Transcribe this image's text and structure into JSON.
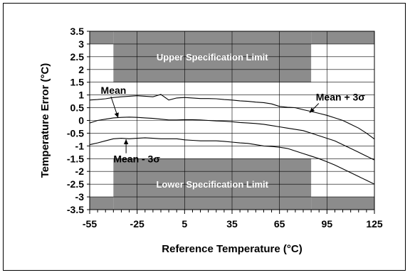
{
  "chart_data": {
    "type": "line",
    "xlabel": "Reference Temperature (°C)",
    "ylabel": "Temperature Error (°C)",
    "xlim": [
      -55,
      125
    ],
    "ylim": [
      -3.5,
      3.5
    ],
    "x_ticks": [
      -55,
      -25,
      5,
      35,
      65,
      95,
      125
    ],
    "y_ticks": [
      3.5,
      3,
      2.5,
      2,
      1.5,
      1,
      0.5,
      0,
      -0.5,
      -1,
      -1.5,
      -2,
      -2.5,
      -3,
      -3.5
    ],
    "grid": true,
    "spec_limits": {
      "upper": {
        "label": "Upper Specification Limit",
        "segments": [
          {
            "x": [
              -55,
              -40
            ],
            "y": [
              3,
              3.5
            ]
          },
          {
            "x": [
              -40,
              85
            ],
            "y": [
              1.5,
              3.5
            ]
          },
          {
            "x": [
              85,
              125
            ],
            "y": [
              3,
              3.5
            ]
          }
        ]
      },
      "lower": {
        "label": "Lower Specification Limit",
        "segments": [
          {
            "x": [
              -55,
              -40
            ],
            "y": [
              -3.5,
              -3
            ]
          },
          {
            "x": [
              -40,
              85
            ],
            "y": [
              -3.5,
              -1.5
            ]
          },
          {
            "x": [
              85,
              125
            ],
            "y": [
              -3.5,
              -3
            ]
          }
        ]
      }
    },
    "series": [
      {
        "name": "Mean + 3σ",
        "x": [
          -55,
          -50,
          -45,
          -40,
          -35,
          -30,
          -25,
          -20,
          -15,
          -10,
          -5,
          0,
          5,
          10,
          15,
          20,
          25,
          30,
          35,
          40,
          45,
          50,
          55,
          60,
          65,
          70,
          75,
          80,
          85,
          90,
          95,
          100,
          105,
          110,
          115,
          120,
          125
        ],
        "y": [
          0.8,
          0.82,
          0.85,
          0.9,
          0.93,
          0.95,
          0.97,
          0.95,
          0.93,
          1.02,
          0.8,
          0.88,
          0.9,
          0.88,
          0.86,
          0.86,
          0.85,
          0.82,
          0.8,
          0.77,
          0.75,
          0.72,
          0.7,
          0.65,
          0.55,
          0.52,
          0.5,
          0.42,
          0.35,
          0.28,
          0.2,
          0.1,
          0.0,
          -0.15,
          -0.3,
          -0.5,
          -0.73
        ]
      },
      {
        "name": "Mean",
        "x": [
          -55,
          -50,
          -45,
          -40,
          -35,
          -30,
          -25,
          -20,
          -15,
          -10,
          -5,
          0,
          5,
          10,
          15,
          20,
          25,
          30,
          35,
          40,
          45,
          50,
          55,
          60,
          65,
          70,
          75,
          80,
          85,
          90,
          95,
          100,
          105,
          110,
          115,
          120,
          125
        ],
        "y": [
          -0.1,
          0.0,
          0.05,
          0.1,
          0.12,
          0.13,
          0.12,
          0.1,
          0.08,
          0.05,
          0.02,
          0.02,
          0.03,
          0.03,
          0.02,
          0.0,
          -0.02,
          -0.03,
          -0.05,
          -0.08,
          -0.1,
          -0.12,
          -0.15,
          -0.2,
          -0.25,
          -0.3,
          -0.35,
          -0.4,
          -0.5,
          -0.6,
          -0.7,
          -0.8,
          -0.95,
          -1.1,
          -1.25,
          -1.4,
          -1.55
        ]
      },
      {
        "name": "Mean - 3σ",
        "x": [
          -55,
          -50,
          -45,
          -40,
          -35,
          -30,
          -25,
          -20,
          -15,
          -10,
          -5,
          0,
          5,
          10,
          15,
          20,
          25,
          30,
          35,
          40,
          45,
          50,
          55,
          60,
          65,
          70,
          75,
          80,
          85,
          90,
          95,
          100,
          105,
          110,
          115,
          120,
          125
        ],
        "y": [
          -0.95,
          -0.88,
          -0.8,
          -0.72,
          -0.7,
          -0.72,
          -0.7,
          -0.68,
          -0.7,
          -0.72,
          -0.72,
          -0.72,
          -0.76,
          -0.78,
          -0.8,
          -0.8,
          -0.8,
          -0.82,
          -0.85,
          -0.88,
          -0.9,
          -0.95,
          -1.0,
          -1.02,
          -1.05,
          -1.1,
          -1.2,
          -1.3,
          -1.4,
          -1.5,
          -1.62,
          -1.75,
          -1.9,
          -2.05,
          -2.2,
          -2.35,
          -2.5
        ]
      }
    ],
    "annotations": [
      {
        "text": "Mean",
        "text_at": [
          -48,
          1.05
        ],
        "arrow_to": [
          -37,
          0.1
        ]
      },
      {
        "text": "Mean + 3σ",
        "text_at": [
          88,
          0.78
        ],
        "arrow_to": [
          84,
          0.3
        ]
      },
      {
        "text": "Mean - 3σ",
        "text_at": [
          -40,
          -1.65
        ],
        "arrow_to": [
          -32,
          -0.74
        ]
      }
    ]
  }
}
